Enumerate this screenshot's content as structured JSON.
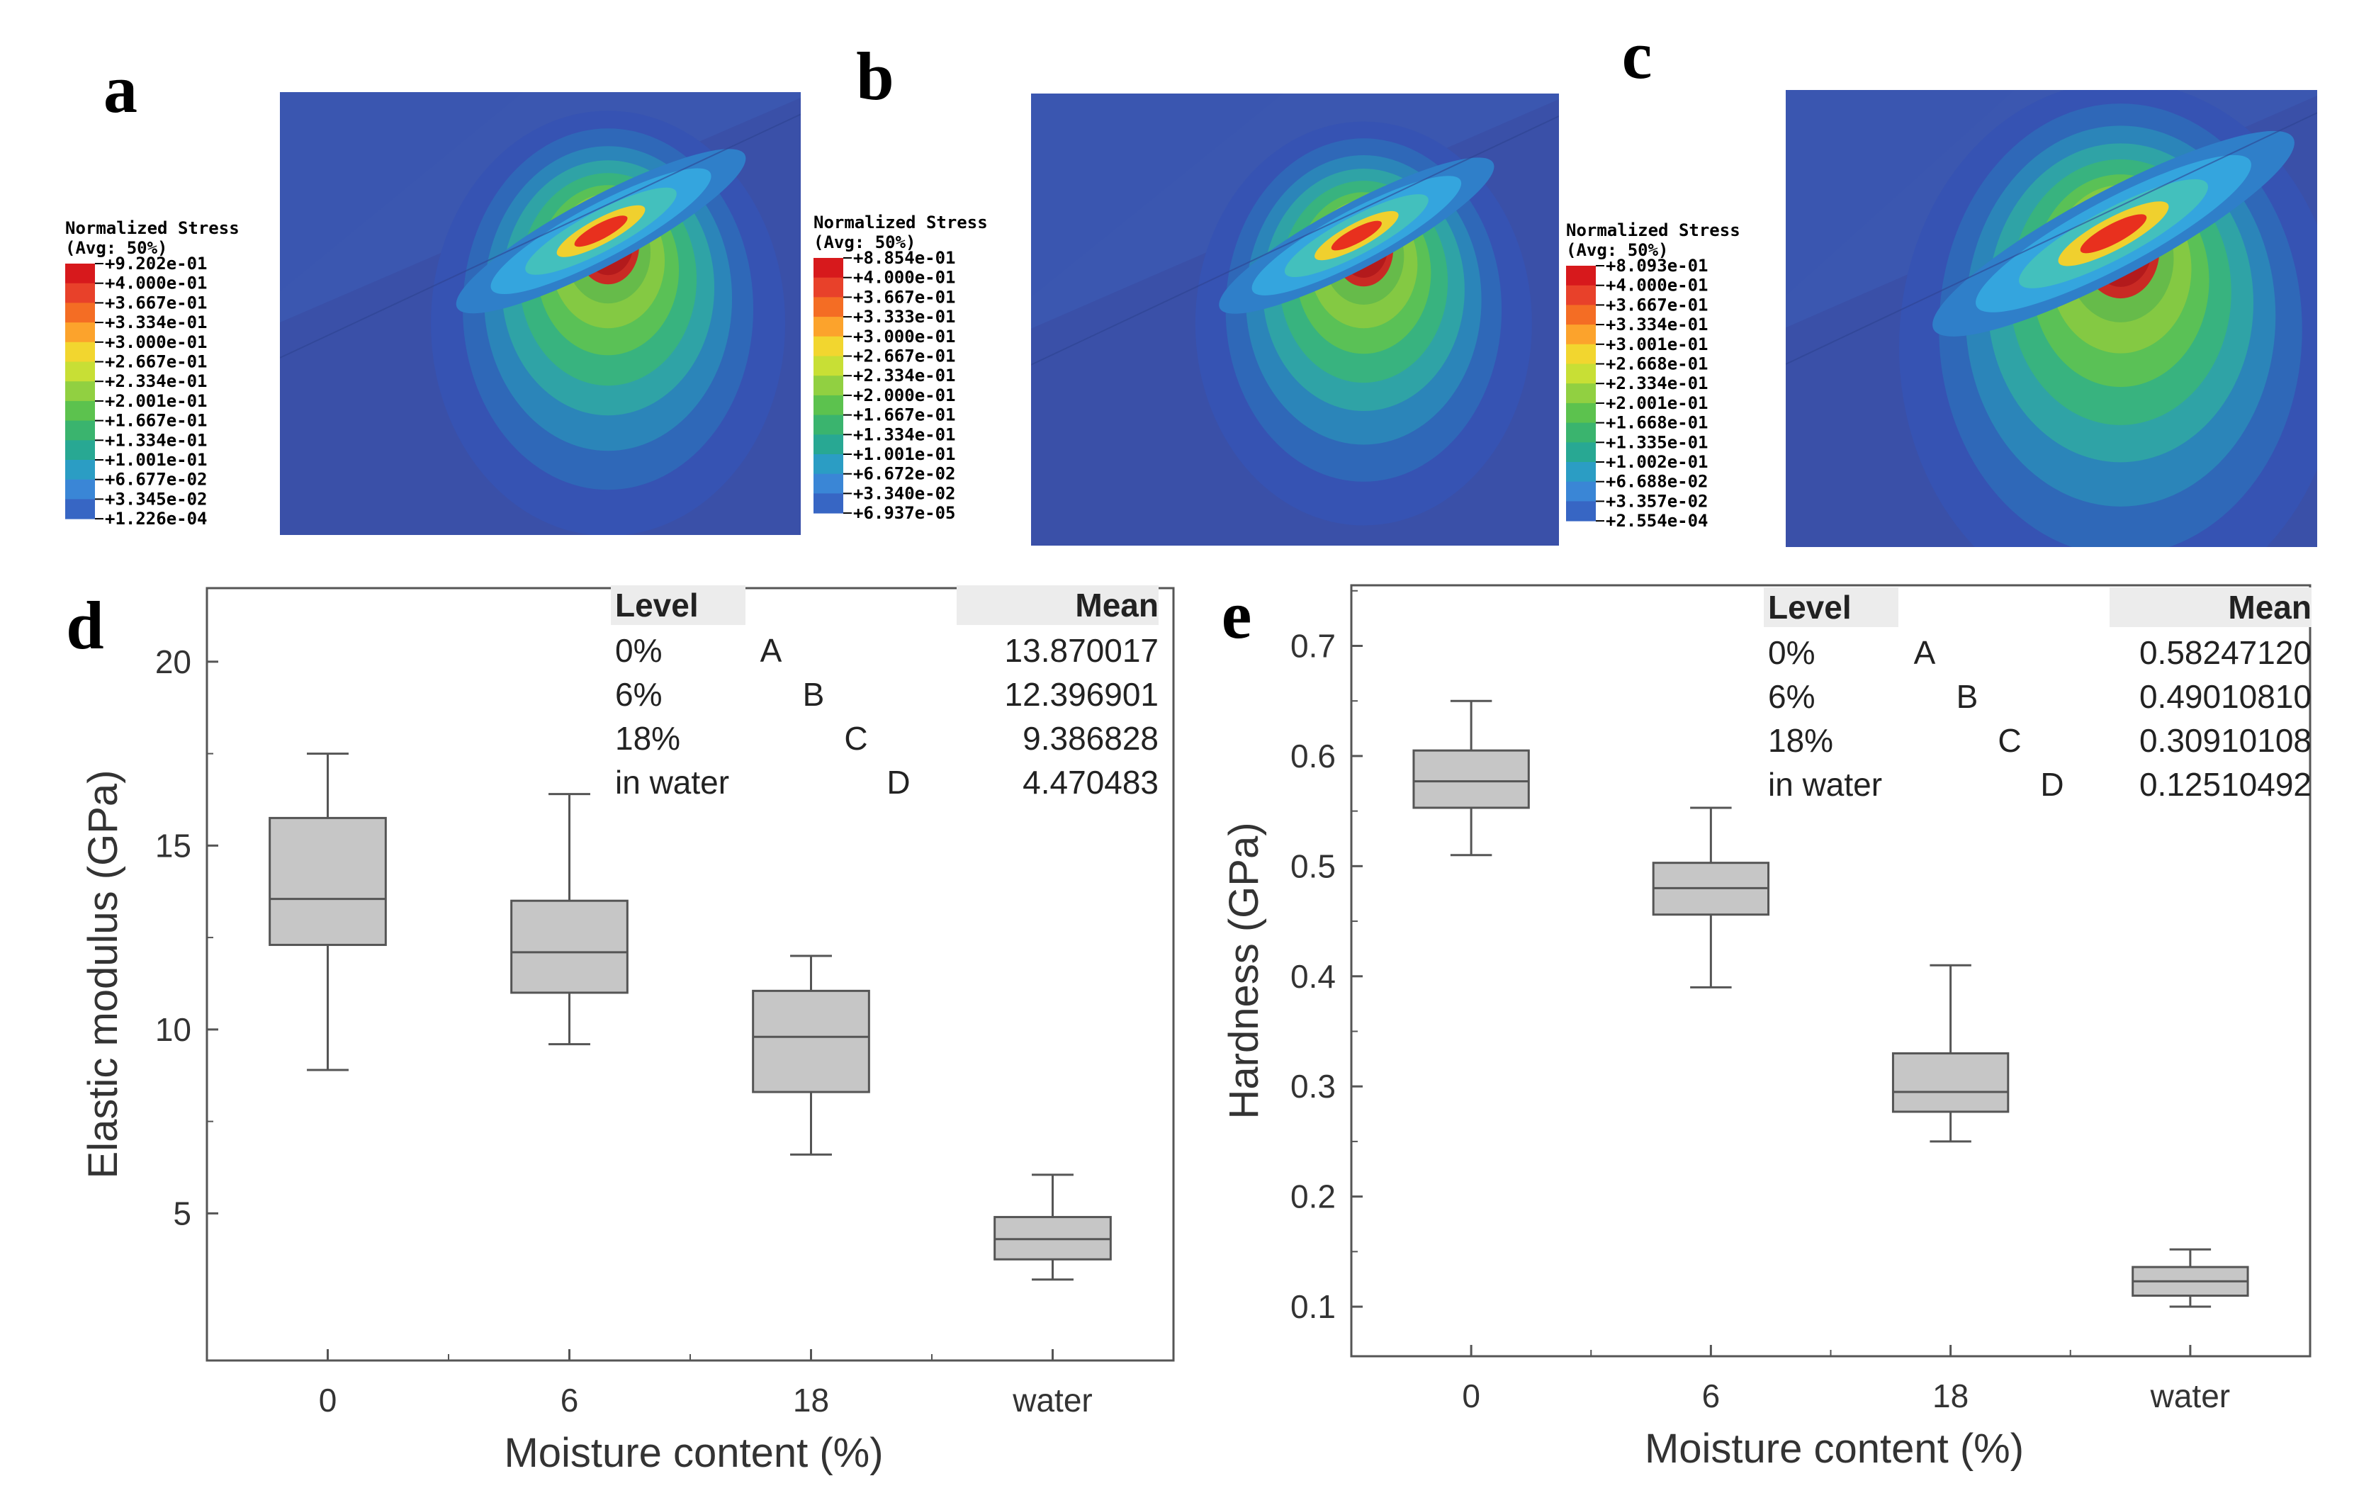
{
  "stress_panels": [
    {
      "letter": "a",
      "legend_title": "Normalized Stress",
      "legend_subtitle": "(Avg: 50%)",
      "ticks": [
        "+9.202e-01",
        "+4.000e-01",
        "+3.667e-01",
        "+3.334e-01",
        "+3.000e-01",
        "+2.667e-01",
        "+2.334e-01",
        "+2.001e-01",
        "+1.667e-01",
        "+1.334e-01",
        "+1.001e-01",
        "+6.677e-02",
        "+3.345e-02",
        "+1.226e-04"
      ],
      "spread": 1.0
    },
    {
      "letter": "b",
      "legend_title": "Normalized Stress",
      "legend_subtitle": "(Avg: 50%)",
      "ticks": [
        "+8.854e-01",
        "+4.000e-01",
        "+3.667e-01",
        "+3.333e-01",
        "+3.000e-01",
        "+2.667e-01",
        "+2.334e-01",
        "+2.000e-01",
        "+1.667e-01",
        "+1.334e-01",
        "+1.001e-01",
        "+6.672e-02",
        "+3.340e-02",
        "+6.937e-05"
      ],
      "spread": 0.95
    },
    {
      "letter": "c",
      "legend_title": "Normalized Stress",
      "legend_subtitle": "(Avg: 50%)",
      "ticks": [
        "+8.093e-01",
        "+4.000e-01",
        "+3.667e-01",
        "+3.334e-01",
        "+3.001e-01",
        "+2.668e-01",
        "+2.334e-01",
        "+2.001e-01",
        "+1.668e-01",
        "+1.335e-01",
        "+1.002e-01",
        "+6.688e-02",
        "+3.357e-02",
        "+2.554e-04"
      ],
      "spread": 1.25
    }
  ],
  "colormap": [
    "#d7191c",
    "#e8412a",
    "#f46d24",
    "#fca32c",
    "#f2d62f",
    "#c8df35",
    "#91d041",
    "#5cc24e",
    "#3ab46e",
    "#28a893",
    "#2b9dc4",
    "#3a86d6",
    "#3766c4",
    "#3650a8"
  ],
  "chart_data": [
    {
      "letter": "d",
      "type": "box",
      "title": "",
      "categories": [
        "0",
        "6",
        "18",
        "water"
      ],
      "boxes": [
        {
          "min": 8.9,
          "q1": 12.3,
          "median": 13.55,
          "q3": 15.75,
          "max": 17.5
        },
        {
          "min": 9.6,
          "q1": 11.0,
          "median": 12.1,
          "q3": 13.5,
          "max": 16.4
        },
        {
          "min": 6.6,
          "q1": 8.3,
          "median": 9.8,
          "q3": 11.05,
          "max": 12.0
        },
        {
          "min": 3.2,
          "q1": 3.75,
          "median": 4.3,
          "q3": 4.9,
          "max": 6.05
        }
      ],
      "xlabel": "Moisture content (%)",
      "ylabel": "Elastic modulus (GPa)",
      "ylim": [
        1,
        22
      ],
      "yticks": [
        "5",
        "10",
        "15",
        "20"
      ],
      "ytick_values": [
        5,
        10,
        15,
        20
      ],
      "table": {
        "level_header": "Level",
        "mean_header": "Mean",
        "rows": [
          {
            "level": "0%",
            "group": "A",
            "mean": "13.870017"
          },
          {
            "level": "6%",
            "group": "B",
            "mean": "12.396901"
          },
          {
            "level": "18%",
            "group": "C",
            "mean": "9.386828"
          },
          {
            "level": "in water",
            "group": "D",
            "mean": "4.470483"
          }
        ]
      }
    },
    {
      "letter": "e",
      "type": "box",
      "title": "",
      "categories": [
        "0",
        "6",
        "18",
        "water"
      ],
      "boxes": [
        {
          "min": 0.51,
          "q1": 0.553,
          "median": 0.577,
          "q3": 0.605,
          "max": 0.65
        },
        {
          "min": 0.39,
          "q1": 0.456,
          "median": 0.48,
          "q3": 0.503,
          "max": 0.553
        },
        {
          "min": 0.25,
          "q1": 0.277,
          "median": 0.295,
          "q3": 0.33,
          "max": 0.41
        },
        {
          "min": 0.1,
          "q1": 0.11,
          "median": 0.123,
          "q3": 0.136,
          "max": 0.152
        }
      ],
      "xlabel": "Moisture content (%)",
      "ylabel": "Hardness (GPa)",
      "ylim": [
        0.055,
        0.755
      ],
      "yticks": [
        "0.1",
        "0.2",
        "0.3",
        "0.4",
        "0.5",
        "0.6",
        "0.7"
      ],
      "ytick_values": [
        0.1,
        0.2,
        0.3,
        0.4,
        0.5,
        0.6,
        0.7
      ],
      "table": {
        "level_header": "Level",
        "mean_header": "Mean",
        "rows": [
          {
            "level": "0%",
            "group": "A",
            "mean": "0.58247120"
          },
          {
            "level": "6%",
            "group": "B",
            "mean": "0.49010810"
          },
          {
            "level": "18%",
            "group": "C",
            "mean": "0.30910108"
          },
          {
            "level": "in water",
            "group": "D",
            "mean": "0.12510492"
          }
        ]
      }
    }
  ]
}
